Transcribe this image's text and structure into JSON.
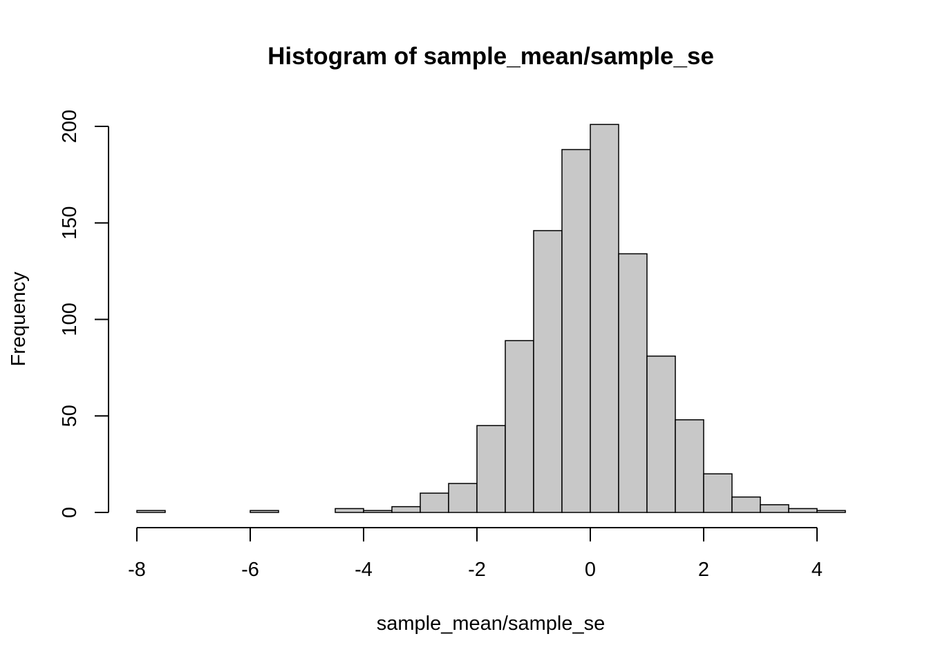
{
  "chart_data": {
    "type": "bar",
    "title": "Histogram of sample_mean/sample_se",
    "xlabel": "sample_mean/sample_se",
    "ylabel": "Frequency",
    "bin_edges": [
      -8,
      -7.5,
      -7,
      -6.5,
      -6,
      -5.5,
      -5,
      -4.5,
      -4,
      -3.5,
      -3,
      -2.5,
      -2,
      -1.5,
      -1,
      -0.5,
      0,
      0.5,
      1,
      1.5,
      2,
      2.5,
      3,
      3.5,
      4,
      4.5
    ],
    "values": [
      1,
      0,
      0,
      0,
      1,
      0,
      0,
      2,
      1,
      3,
      10,
      15,
      45,
      89,
      146,
      188,
      201,
      134,
      81,
      48,
      20,
      8,
      4,
      2,
      1
    ],
    "xlim": [
      -8,
      4.5
    ],
    "ylim": [
      0,
      200
    ],
    "x_ticks": [
      -8,
      -6,
      -4,
      -2,
      0,
      2,
      4
    ],
    "x_tick_labels": [
      "-8",
      "-6",
      "-4",
      "-2",
      "0",
      "2",
      "4"
    ],
    "y_ticks": [
      0,
      50,
      100,
      150,
      200
    ],
    "y_tick_labels": [
      "0",
      "50",
      "100",
      "150",
      "200"
    ],
    "bar_color": "#c8c8c8",
    "grid": false,
    "legend": "none"
  }
}
